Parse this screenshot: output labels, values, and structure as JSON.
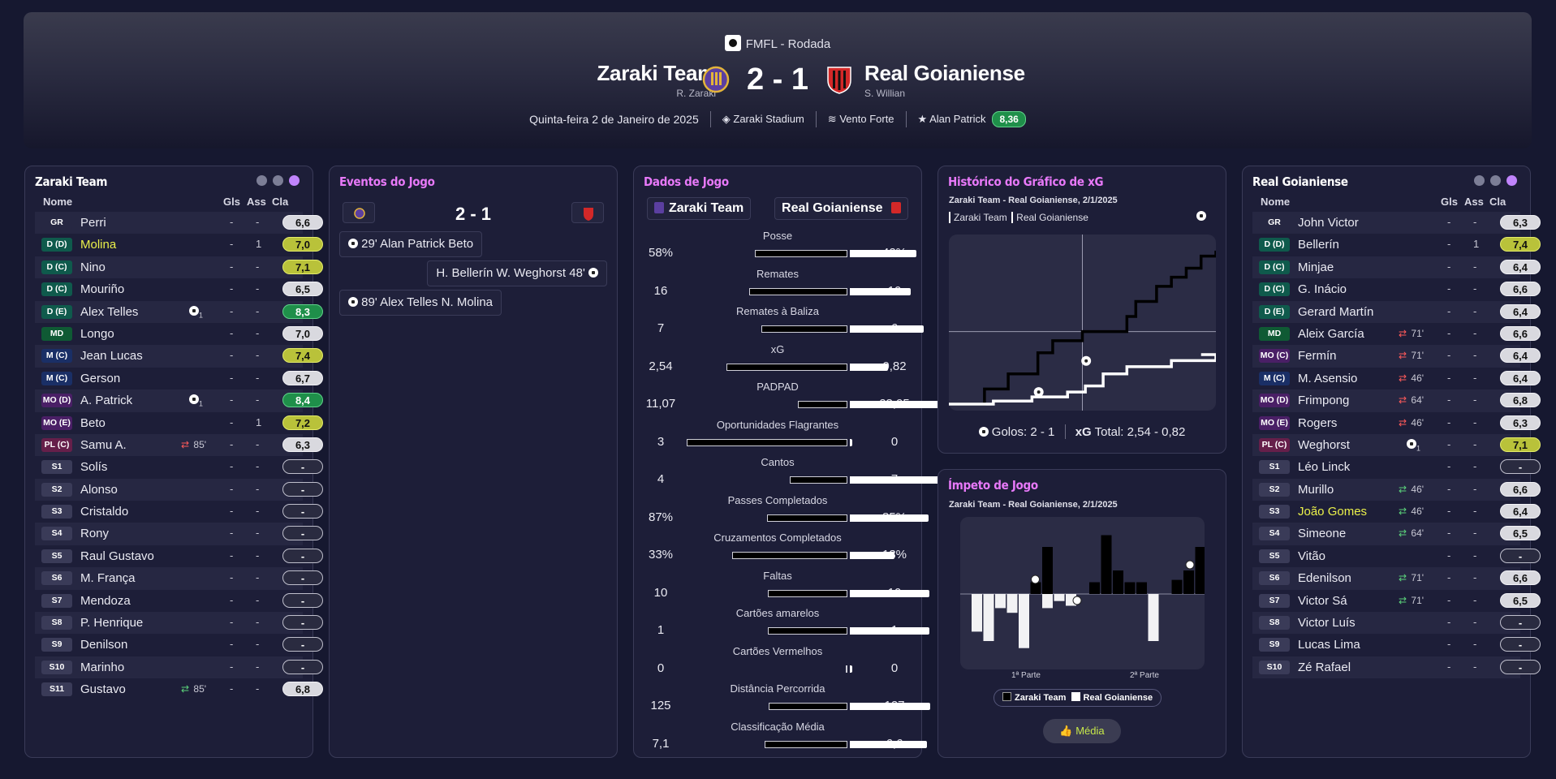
{
  "header": {
    "competition": "FMFL - Rodada",
    "home": {
      "name": "Zaraki Team",
      "manager": "R. Zaraki"
    },
    "away": {
      "name": "Real Goianiense",
      "manager": "S. Willian"
    },
    "score": "2 - 1",
    "date": "Quinta-feira 2 de Janeiro de 2025",
    "stadium": "Zaraki Stadium",
    "weather": "Vento Forte",
    "pom_name": "Alan Patrick",
    "pom_rating": "8,36"
  },
  "home_panel": {
    "title": "Zaraki Team",
    "cols": {
      "name": "Nome",
      "gls": "Gls",
      "ass": "Ass",
      "cla": "Cla"
    },
    "players": [
      {
        "pos": "GR",
        "name": "Perri",
        "gls": "-",
        "ass": "-",
        "cla": "6,6",
        "pc": "#262742",
        "rc": "w"
      },
      {
        "pos": "D (D)",
        "name": "Molina",
        "gls": "-",
        "ass": "1",
        "cla": "7,0",
        "pc": "#0f5a4c",
        "rc": "y",
        "hl": true
      },
      {
        "pos": "D (C)",
        "name": "Nino",
        "gls": "-",
        "ass": "-",
        "cla": "7,1",
        "pc": "#0f5a4c",
        "rc": "y"
      },
      {
        "pos": "D (C)",
        "name": "Mouriño",
        "gls": "-",
        "ass": "-",
        "cla": "6,5",
        "pc": "#0f5a4c",
        "rc": "w"
      },
      {
        "pos": "D (E)",
        "name": "Alex Telles",
        "gls": "-",
        "ass": "-",
        "cla": "8,3",
        "pc": "#0f5a4c",
        "rc": "g",
        "goal": "1"
      },
      {
        "pos": "MD",
        "name": "Longo",
        "gls": "-",
        "ass": "-",
        "cla": "7,0",
        "pc": "#0f5a34",
        "rc": "w"
      },
      {
        "pos": "M (C)",
        "name": "Jean Lucas",
        "gls": "-",
        "ass": "-",
        "cla": "7,4",
        "pc": "#1a2f66",
        "rc": "y"
      },
      {
        "pos": "M (C)",
        "name": "Gerson",
        "gls": "-",
        "ass": "-",
        "cla": "6,7",
        "pc": "#1a2f66",
        "rc": "w"
      },
      {
        "pos": "MO (D)",
        "name": "A. Patrick",
        "gls": "-",
        "ass": "-",
        "cla": "8,4",
        "pc": "#4a1f66",
        "rc": "g",
        "goal": "1"
      },
      {
        "pos": "MO (E)",
        "name": "Beto",
        "gls": "-",
        "ass": "1",
        "cla": "7,2",
        "pc": "#4a1f66",
        "rc": "y"
      },
      {
        "pos": "PL (C)",
        "name": "Samu A.",
        "gls": "-",
        "ass": "-",
        "cla": "6,3",
        "pc": "#661f4a",
        "rc": "w",
        "sub": "85'",
        "subdir": "out"
      },
      {
        "pos": "S1",
        "name": "Solís",
        "gls": "-",
        "ass": "-",
        "cla": "-",
        "pc": "#3a3b58",
        "rc": "d"
      },
      {
        "pos": "S2",
        "name": "Alonso",
        "gls": "-",
        "ass": "-",
        "cla": "-",
        "pc": "#3a3b58",
        "rc": "d"
      },
      {
        "pos": "S3",
        "name": "Cristaldo",
        "gls": "-",
        "ass": "-",
        "cla": "-",
        "pc": "#3a3b58",
        "rc": "d"
      },
      {
        "pos": "S4",
        "name": "Rony",
        "gls": "-",
        "ass": "-",
        "cla": "-",
        "pc": "#3a3b58",
        "rc": "d"
      },
      {
        "pos": "S5",
        "name": "Raul Gustavo",
        "gls": "-",
        "ass": "-",
        "cla": "-",
        "pc": "#3a3b58",
        "rc": "d"
      },
      {
        "pos": "S6",
        "name": "M. França",
        "gls": "-",
        "ass": "-",
        "cla": "-",
        "pc": "#3a3b58",
        "rc": "d"
      },
      {
        "pos": "S7",
        "name": "Mendoza",
        "gls": "-",
        "ass": "-",
        "cla": "-",
        "pc": "#3a3b58",
        "rc": "d"
      },
      {
        "pos": "S8",
        "name": "P. Henrique",
        "gls": "-",
        "ass": "-",
        "cla": "-",
        "pc": "#3a3b58",
        "rc": "d"
      },
      {
        "pos": "S9",
        "name": "Denilson",
        "gls": "-",
        "ass": "-",
        "cla": "-",
        "pc": "#3a3b58",
        "rc": "d"
      },
      {
        "pos": "S10",
        "name": "Marinho",
        "gls": "-",
        "ass": "-",
        "cla": "-",
        "pc": "#3a3b58",
        "rc": "d"
      },
      {
        "pos": "S11",
        "name": "Gustavo",
        "gls": "-",
        "ass": "-",
        "cla": "6,8",
        "pc": "#3a3b58",
        "rc": "w",
        "sub": "85'",
        "subdir": "in"
      }
    ]
  },
  "away_panel": {
    "title": "Real Goianiense",
    "cols": {
      "name": "Nome",
      "gls": "Gls",
      "ass": "Ass",
      "cla": "Cla"
    },
    "players": [
      {
        "pos": "GR",
        "name": "John Victor",
        "gls": "-",
        "ass": "-",
        "cla": "6,3",
        "pc": "#262742",
        "rc": "w"
      },
      {
        "pos": "D (D)",
        "name": "Bellerín",
        "gls": "-",
        "ass": "1",
        "cla": "7,4",
        "pc": "#0f5a4c",
        "rc": "y"
      },
      {
        "pos": "D (C)",
        "name": "Minjae",
        "gls": "-",
        "ass": "-",
        "cla": "6,4",
        "pc": "#0f5a4c",
        "rc": "w"
      },
      {
        "pos": "D (C)",
        "name": "G. Inácio",
        "gls": "-",
        "ass": "-",
        "cla": "6,6",
        "pc": "#0f5a4c",
        "rc": "w"
      },
      {
        "pos": "D (E)",
        "name": "Gerard Martín",
        "gls": "-",
        "ass": "-",
        "cla": "6,4",
        "pc": "#0f5a4c",
        "rc": "w"
      },
      {
        "pos": "MD",
        "name": "Aleix García",
        "gls": "-",
        "ass": "-",
        "cla": "6,6",
        "pc": "#0f5a34",
        "rc": "w",
        "sub": "71'",
        "subdir": "out"
      },
      {
        "pos": "MO (C)",
        "name": "Fermín",
        "gls": "-",
        "ass": "-",
        "cla": "6,4",
        "pc": "#4a1f66",
        "rc": "w",
        "sub": "71'",
        "subdir": "out"
      },
      {
        "pos": "M (C)",
        "name": "M. Asensio",
        "gls": "-",
        "ass": "-",
        "cla": "6,4",
        "pc": "#1a2f66",
        "rc": "w",
        "sub": "46'",
        "subdir": "out"
      },
      {
        "pos": "MO (D)",
        "name": "Frimpong",
        "gls": "-",
        "ass": "-",
        "cla": "6,8",
        "pc": "#4a1f66",
        "rc": "w",
        "sub": "64'",
        "subdir": "out"
      },
      {
        "pos": "MO (E)",
        "name": "Rogers",
        "gls": "-",
        "ass": "-",
        "cla": "6,3",
        "pc": "#4a1f66",
        "rc": "w",
        "sub": "46'",
        "subdir": "out"
      },
      {
        "pos": "PL (C)",
        "name": "Weghorst",
        "gls": "-",
        "ass": "-",
        "cla": "7,1",
        "pc": "#661f4a",
        "rc": "y",
        "goal": "1"
      },
      {
        "pos": "S1",
        "name": "Léo Linck",
        "gls": "-",
        "ass": "-",
        "cla": "-",
        "pc": "#3a3b58",
        "rc": "d"
      },
      {
        "pos": "S2",
        "name": "Murillo",
        "gls": "-",
        "ass": "-",
        "cla": "6,6",
        "pc": "#3a3b58",
        "rc": "w",
        "sub": "46'",
        "subdir": "in"
      },
      {
        "pos": "S3",
        "name": "João Gomes",
        "gls": "-",
        "ass": "-",
        "cla": "6,4",
        "pc": "#3a3b58",
        "rc": "w",
        "sub": "46'",
        "subdir": "in",
        "hl": true
      },
      {
        "pos": "S4",
        "name": "Simeone",
        "gls": "-",
        "ass": "-",
        "cla": "6,5",
        "pc": "#3a3b58",
        "rc": "w",
        "sub": "64'",
        "subdir": "in"
      },
      {
        "pos": "S5",
        "name": "Vitão",
        "gls": "-",
        "ass": "-",
        "cla": "-",
        "pc": "#3a3b58",
        "rc": "d"
      },
      {
        "pos": "S6",
        "name": "Edenilson",
        "gls": "-",
        "ass": "-",
        "cla": "6,6",
        "pc": "#3a3b58",
        "rc": "w",
        "sub": "71'",
        "subdir": "in"
      },
      {
        "pos": "S7",
        "name": "Victor Sá",
        "gls": "-",
        "ass": "-",
        "cla": "6,5",
        "pc": "#3a3b58",
        "rc": "w",
        "sub": "71'",
        "subdir": "in"
      },
      {
        "pos": "S8",
        "name": "Victor Luís",
        "gls": "-",
        "ass": "-",
        "cla": "-",
        "pc": "#3a3b58",
        "rc": "d"
      },
      {
        "pos": "S9",
        "name": "Lucas Lima",
        "gls": "-",
        "ass": "-",
        "cla": "-",
        "pc": "#3a3b58",
        "rc": "d"
      },
      {
        "pos": "S10",
        "name": "Zé Rafael",
        "gls": "-",
        "ass": "-",
        "cla": "-",
        "pc": "#3a3b58",
        "rc": "d"
      }
    ]
  },
  "events": {
    "title": "Eventos do Jogo",
    "score": "2 - 1",
    "items": [
      {
        "side": "home",
        "minute": "29'",
        "scorer": "Alan Patrick",
        "assist": "Beto"
      },
      {
        "side": "away",
        "minute": "48'",
        "scorer": "W. Weghorst",
        "assist": "H. Bellerín"
      },
      {
        "side": "home",
        "minute": "89'",
        "scorer": "Alex Telles",
        "assist": "N. Molina"
      }
    ]
  },
  "stats": {
    "title": "Dados de Jogo",
    "home_label": "Zaraki Team",
    "away_label": "Real Goianiense",
    "rows": [
      {
        "label": "Posse",
        "home": "58%",
        "away": "42%",
        "h": 58,
        "a": 42
      },
      {
        "label": "Remates",
        "home": "16",
        "away": "10",
        "h": 16,
        "a": 10
      },
      {
        "label": "Remates à Baliza",
        "home": "7",
        "away": "6",
        "h": 7,
        "a": 6
      },
      {
        "label": "xG",
        "home": "2,54",
        "away": "0,82",
        "h": 2.54,
        "a": 0.82
      },
      {
        "label": "PADPAD",
        "home": "11,07",
        "away": "23,95",
        "h": 11.07,
        "a": 23.95
      },
      {
        "label": "Oportunidades Flagrantes",
        "home": "3",
        "away": "0",
        "h": 3,
        "a": 0
      },
      {
        "label": "Cantos",
        "home": "4",
        "away": "7",
        "h": 4,
        "a": 7
      },
      {
        "label": "Passes Completados",
        "home": "87%",
        "away": "85%",
        "h": 87,
        "a": 85
      },
      {
        "label": "Cruzamentos Completados",
        "home": "33%",
        "away": "13%",
        "h": 33,
        "a": 13
      },
      {
        "label": "Faltas",
        "home": "10",
        "away": "10",
        "h": 10,
        "a": 10
      },
      {
        "label": "Cartões amarelos",
        "home": "1",
        "away": "1",
        "h": 1,
        "a": 1
      },
      {
        "label": "Cartões Vermelhos",
        "home": "0",
        "away": "0",
        "h": 0,
        "a": 0
      },
      {
        "label": "Distância Percorrida",
        "home": "125",
        "away": "127",
        "h": 125,
        "a": 127
      },
      {
        "label": "Classificação Média",
        "home": "7,1",
        "away": "6,6",
        "h": 7.1,
        "a": 6.6
      }
    ]
  },
  "xg_chart": {
    "title": "Histórico do Gráfico de xG",
    "subtitle": "Zaraki Team - Real Goianiense, 2/1/2025",
    "legend_home": "Zaraki Team",
    "legend_away": "Real Goianiense",
    "goals_label": "Golos:",
    "goals_value": "2 - 1",
    "xg_label": "xG",
    "total_label": "Total:",
    "total_value": "2,54  -  0,82"
  },
  "momentum": {
    "title": "Ímpeto de Jogo",
    "subtitle": "Zaraki Team - Real Goianiense, 2/1/2025",
    "half1": "1ª Parte",
    "half2": "2ª Parte",
    "legend_home": "Zaraki Team",
    "legend_away": "Real Goianiense",
    "button": "Média"
  },
  "chart_data": [
    {
      "type": "line",
      "title": "Histórico do Gráfico de xG",
      "series": [
        {
          "name": "Zaraki Team",
          "x": [
            0,
            12,
            20,
            30,
            35,
            45,
            60,
            63,
            70,
            75,
            80,
            85,
            90
          ],
          "y": [
            0,
            0.25,
            0.5,
            0.85,
            1.05,
            1.2,
            1.45,
            1.7,
            1.95,
            2.1,
            2.25,
            2.45,
            2.54
          ]
        },
        {
          "name": "Real Goianiense",
          "x": [
            0,
            15,
            28,
            40,
            46,
            52,
            60,
            75,
            90
          ],
          "y": [
            0,
            0.05,
            0.12,
            0.2,
            0.3,
            0.5,
            0.62,
            0.72,
            0.82
          ]
        }
      ],
      "xlim": [
        0,
        90
      ]
    },
    {
      "type": "bar",
      "title": "Ímpeto de Jogo",
      "series": [
        {
          "name": "Zaraki Team",
          "values": [
            0,
            0,
            0,
            0,
            0,
            0.25,
            1,
            0,
            0,
            0,
            0.25,
            1.25,
            0.5,
            0.25,
            0.25,
            0,
            0,
            0.3,
            0.5,
            1
          ]
        },
        {
          "name": "Real Goianiense",
          "values": [
            0.8,
            1,
            0.3,
            0.4,
            1.15,
            0,
            0.3,
            0.15,
            0.25,
            0,
            0,
            0,
            0,
            0,
            0,
            1.0,
            0,
            0,
            0,
            0
          ]
        }
      ]
    }
  ]
}
